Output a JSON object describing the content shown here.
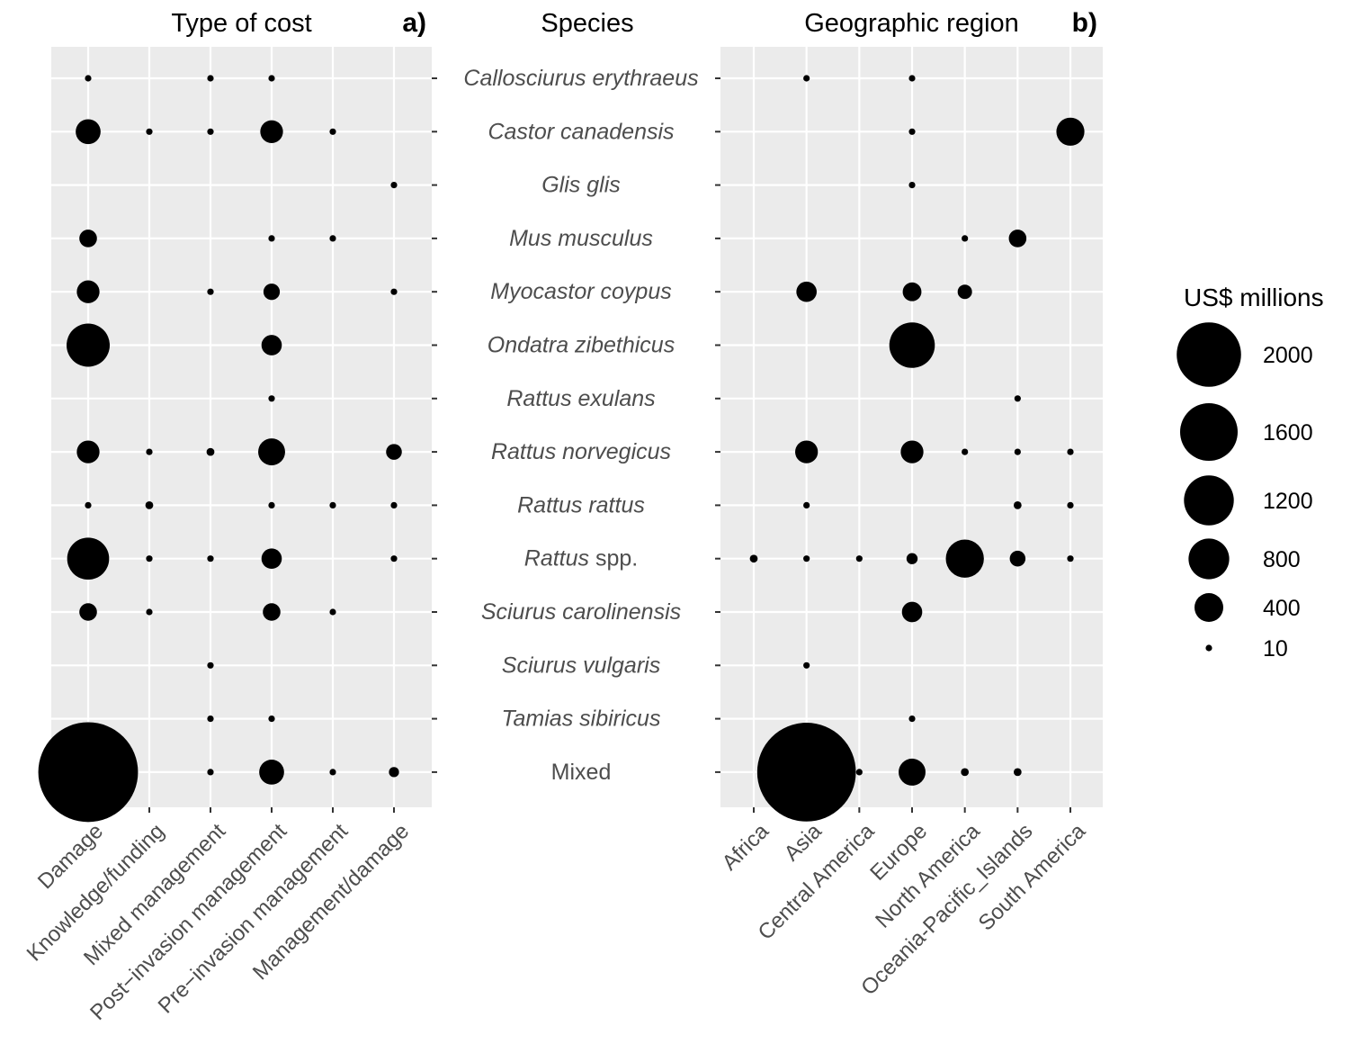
{
  "chart_data": [
    {
      "type": "scatter",
      "panel_tag": "a)",
      "title": "Type of cost",
      "x_categories": [
        "Damage",
        "Knowledge/funding",
        "Mixed management",
        "Post−invasion management",
        "Pre−invasion management",
        "Management/damage"
      ],
      "y_categories": [
        "Callosciurus erythraeus",
        "Castor canadensis",
        "Glis glis",
        "Mus musculus",
        "Myocastor coypus",
        "Ondatra zibethicus",
        "Rattus exulans",
        "Rattus norvegicus",
        "Rattus rattus",
        "Rattus spp.",
        "Sciurus carolinensis",
        "Sciurus vulgaris",
        "Tamias sibiricus",
        "Mixed"
      ],
      "size_variable": "US$ millions",
      "grid": true,
      "points": [
        {
          "x": "Damage",
          "y": "Callosciurus erythraeus",
          "value": 10
        },
        {
          "x": "Mixed management",
          "y": "Callosciurus erythraeus",
          "value": 10
        },
        {
          "x": "Post−invasion management",
          "y": "Callosciurus erythraeus",
          "value": 10
        },
        {
          "x": "Damage",
          "y": "Castor canadensis",
          "value": 300
        },
        {
          "x": "Knowledge/funding",
          "y": "Castor canadensis",
          "value": 10
        },
        {
          "x": "Mixed management",
          "y": "Castor canadensis",
          "value": 5
        },
        {
          "x": "Post−invasion management",
          "y": "Castor canadensis",
          "value": 250
        },
        {
          "x": "Pre−invasion management",
          "y": "Castor canadensis",
          "value": 20
        },
        {
          "x": "Management/damage",
          "y": "Glis glis",
          "value": 10
        },
        {
          "x": "Damage",
          "y": "Mus musculus",
          "value": 150
        },
        {
          "x": "Post−invasion management",
          "y": "Mus musculus",
          "value": 10
        },
        {
          "x": "Pre−invasion management",
          "y": "Mus musculus",
          "value": 5
        },
        {
          "x": "Damage",
          "y": "Myocastor coypus",
          "value": 250
        },
        {
          "x": "Mixed management",
          "y": "Myocastor coypus",
          "value": 3
        },
        {
          "x": "Post−invasion management",
          "y": "Myocastor coypus",
          "value": 130
        },
        {
          "x": "Management/damage",
          "y": "Myocastor coypus",
          "value": 3
        },
        {
          "x": "Damage",
          "y": "Ondatra zibethicus",
          "value": 900
        },
        {
          "x": "Post−invasion management",
          "y": "Ondatra zibethicus",
          "value": 200
        },
        {
          "x": "Post−invasion management",
          "y": "Rattus exulans",
          "value": 10
        },
        {
          "x": "Damage",
          "y": "Rattus norvegicus",
          "value": 250
        },
        {
          "x": "Knowledge/funding",
          "y": "Rattus norvegicus",
          "value": 3
        },
        {
          "x": "Mixed management",
          "y": "Rattus norvegicus",
          "value": 30
        },
        {
          "x": "Post−invasion management",
          "y": "Rattus norvegicus",
          "value": 350
        },
        {
          "x": "Management/damage",
          "y": "Rattus norvegicus",
          "value": 120
        },
        {
          "x": "Damage",
          "y": "Rattus rattus",
          "value": 20
        },
        {
          "x": "Knowledge/funding",
          "y": "Rattus rattus",
          "value": 30
        },
        {
          "x": "Post−invasion management",
          "y": "Rattus rattus",
          "value": 20
        },
        {
          "x": "Pre−invasion management",
          "y": "Rattus rattus",
          "value": 20
        },
        {
          "x": "Management/damage",
          "y": "Rattus rattus",
          "value": 10
        },
        {
          "x": "Damage",
          "y": "Rattus spp.",
          "value": 850
        },
        {
          "x": "Knowledge/funding",
          "y": "Rattus spp.",
          "value": 10
        },
        {
          "x": "Mixed management",
          "y": "Rattus spp.",
          "value": 20
        },
        {
          "x": "Post−invasion management",
          "y": "Rattus spp.",
          "value": 200
        },
        {
          "x": "Management/damage",
          "y": "Rattus spp.",
          "value": 10
        },
        {
          "x": "Damage",
          "y": "Sciurus carolinensis",
          "value": 150
        },
        {
          "x": "Knowledge/funding",
          "y": "Sciurus carolinensis",
          "value": 20
        },
        {
          "x": "Post−invasion management",
          "y": "Sciurus carolinensis",
          "value": 150
        },
        {
          "x": "Pre−invasion management",
          "y": "Sciurus carolinensis",
          "value": 3
        },
        {
          "x": "Mixed management",
          "y": "Sciurus vulgaris",
          "value": 10
        },
        {
          "x": "Mixed management",
          "y": "Tamias sibiricus",
          "value": 10
        },
        {
          "x": "Post−invasion management",
          "y": "Tamias sibiricus",
          "value": 10
        },
        {
          "x": "Damage",
          "y": "Mixed",
          "value": 4800
        },
        {
          "x": "Mixed management",
          "y": "Mixed",
          "value": 20
        },
        {
          "x": "Post−invasion management",
          "y": "Mixed",
          "value": 300
        },
        {
          "x": "Pre−invasion management",
          "y": "Mixed",
          "value": 3
        },
        {
          "x": "Management/damage",
          "y": "Mixed",
          "value": 50
        }
      ]
    },
    {
      "type": "scatter",
      "panel_tag": "b)",
      "title": "Geographic region",
      "x_categories": [
        "Africa",
        "Asia",
        "Central America",
        "Europe",
        "North America",
        "Oceania-Pacific_Islands",
        "South America"
      ],
      "y_categories": [
        "Callosciurus erythraeus",
        "Castor canadensis",
        "Glis glis",
        "Mus musculus",
        "Myocastor coypus",
        "Ondatra zibethicus",
        "Rattus exulans",
        "Rattus norvegicus",
        "Rattus rattus",
        "Rattus spp.",
        "Sciurus carolinensis",
        "Sciurus vulgaris",
        "Tamias sibiricus",
        "Mixed"
      ],
      "size_variable": "US$ millions",
      "grid": true,
      "points": [
        {
          "x": "Asia",
          "y": "Callosciurus erythraeus",
          "value": 20
        },
        {
          "x": "Europe",
          "y": "Callosciurus erythraeus",
          "value": 10
        },
        {
          "x": "Europe",
          "y": "Castor canadensis",
          "value": 5
        },
        {
          "x": "South America",
          "y": "Castor canadensis",
          "value": 380
        },
        {
          "x": "Europe",
          "y": "Glis glis",
          "value": 10
        },
        {
          "x": "North America",
          "y": "Mus musculus",
          "value": 5
        },
        {
          "x": "Oceania-Pacific_Islands",
          "y": "Mus musculus",
          "value": 150
        },
        {
          "x": "Asia",
          "y": "Myocastor coypus",
          "value": 200
        },
        {
          "x": "Europe",
          "y": "Myocastor coypus",
          "value": 170
        },
        {
          "x": "North America",
          "y": "Myocastor coypus",
          "value": 100
        },
        {
          "x": "Europe",
          "y": "Ondatra zibethicus",
          "value": 1000
        },
        {
          "x": "Oceania-Pacific_Islands",
          "y": "Rattus exulans",
          "value": 5
        },
        {
          "x": "Asia",
          "y": "Rattus norvegicus",
          "value": 250
        },
        {
          "x": "Europe",
          "y": "Rattus norvegicus",
          "value": 250
        },
        {
          "x": "North America",
          "y": "Rattus norvegicus",
          "value": 3
        },
        {
          "x": "Oceania-Pacific_Islands",
          "y": "Rattus norvegicus",
          "value": 20
        },
        {
          "x": "South America",
          "y": "Rattus norvegicus",
          "value": 5
        },
        {
          "x": "Asia",
          "y": "Rattus rattus",
          "value": 10
        },
        {
          "x": "Oceania-Pacific_Islands",
          "y": "Rattus rattus",
          "value": 30
        },
        {
          "x": "South America",
          "y": "Rattus rattus",
          "value": 20
        },
        {
          "x": "Africa",
          "y": "Rattus spp.",
          "value": 30
        },
        {
          "x": "Asia",
          "y": "Rattus spp.",
          "value": 5
        },
        {
          "x": "Central America",
          "y": "Rattus spp.",
          "value": 5
        },
        {
          "x": "Europe",
          "y": "Rattus spp.",
          "value": 60
        },
        {
          "x": "North America",
          "y": "Rattus spp.",
          "value": 700
        },
        {
          "x": "Oceania-Pacific_Islands",
          "y": "Rattus spp.",
          "value": 120
        },
        {
          "x": "South America",
          "y": "Rattus spp.",
          "value": 5
        },
        {
          "x": "Europe",
          "y": "Sciurus carolinensis",
          "value": 200
        },
        {
          "x": "Asia",
          "y": "Sciurus vulgaris",
          "value": 10
        },
        {
          "x": "Europe",
          "y": "Tamias sibiricus",
          "value": 10
        },
        {
          "x": "Asia",
          "y": "Mixed",
          "value": 4700
        },
        {
          "x": "Central America",
          "y": "Mixed",
          "value": 10
        },
        {
          "x": "Europe",
          "y": "Mixed",
          "value": 350
        },
        {
          "x": "North America",
          "y": "Mixed",
          "value": 30
        },
        {
          "x": "Oceania-Pacific_Islands",
          "y": "Mixed",
          "value": 30
        }
      ]
    }
  ],
  "center_header": "Species",
  "species_parts": [
    [
      "Callosciurus erythraeus"
    ],
    [
      "Castor canadensis"
    ],
    [
      "Glis glis"
    ],
    [
      "Mus musculus"
    ],
    [
      "Myocastor coypus"
    ],
    [
      "Ondatra zibethicus"
    ],
    [
      "Rattus exulans"
    ],
    [
      "Rattus norvegicus"
    ],
    [
      "Rattus rattus"
    ],
    [
      "Rattus",
      " spp."
    ],
    [
      "Sciurus carolinensis"
    ],
    [
      "Sciurus vulgaris"
    ],
    [
      "Tamias sibiricus"
    ],
    [
      "",
      "Mixed"
    ]
  ],
  "legend": {
    "title": "US$ millions",
    "entries": [
      {
        "label": "2000",
        "value": 2000
      },
      {
        "label": "1600",
        "value": 1600
      },
      {
        "label": "1200",
        "value": 1200
      },
      {
        "label": "800",
        "value": 800
      },
      {
        "label": "400",
        "value": 400
      },
      {
        "label": "10",
        "value": 10
      }
    ]
  },
  "colors": {
    "panel_bg": "#ebebeb",
    "grid": "#ffffff",
    "point": "#000000",
    "tick": "#4d4d4d",
    "tick_mark": "#333333"
  }
}
